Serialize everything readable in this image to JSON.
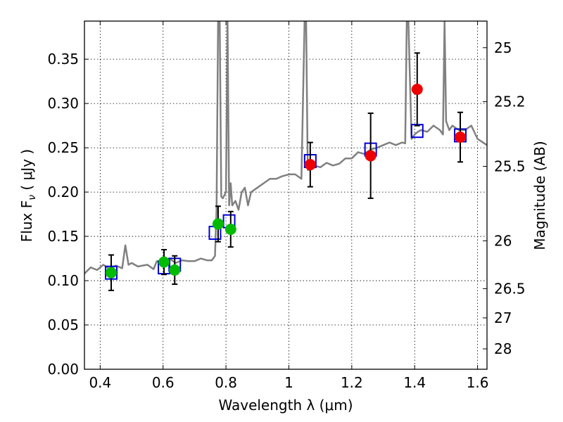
{
  "chart_data": {
    "type": "scatter",
    "xlabel": "Wavelength  λ (μm)",
    "ylabel": "Flux  F",
    "ylabel_sub": "ν",
    "ylabel_unit": " ( μJy )",
    "y2label": "Magnitude (AB)",
    "xlim": [
      0.35,
      1.63
    ],
    "ylim": [
      0.0,
      0.393
    ],
    "grid": true,
    "x_ticks": [
      0.4,
      0.6,
      0.8,
      1.0,
      1.2,
      1.4,
      1.6
    ],
    "x_tick_labels": [
      "0.4",
      "0.6",
      "0.8",
      "1",
      "1.2",
      "1.4",
      "1.6"
    ],
    "y_ticks": [
      0.0,
      0.05,
      0.1,
      0.15,
      0.2,
      0.25,
      0.3,
      0.35
    ],
    "y_tick_labels": [
      "0.00",
      "0.05",
      "0.10",
      "0.15",
      "0.20",
      "0.25",
      "0.30",
      "0.35"
    ],
    "y2_ticks": [
      {
        "label": "25",
        "flux": 0.363
      },
      {
        "label": "25.2",
        "flux": 0.302
      },
      {
        "label": "25.5",
        "flux": 0.229
      },
      {
        "label": "26",
        "flux": 0.145
      },
      {
        "label": "26.5",
        "flux": 0.091
      },
      {
        "label": "27",
        "flux": 0.058
      },
      {
        "label": "28",
        "flux": 0.023
      }
    ],
    "colors": {
      "spectrum": "#808080",
      "model_boxes": "#0000dd",
      "green_points": "#00bb00",
      "red_points": "#ee0000",
      "error_bars": "#000000"
    },
    "spectrum": {
      "x": [
        0.35,
        0.37,
        0.39,
        0.41,
        0.43,
        0.45,
        0.47,
        0.48,
        0.49,
        0.5,
        0.52,
        0.55,
        0.57,
        0.58,
        0.6,
        0.62,
        0.64,
        0.66,
        0.68,
        0.7,
        0.72,
        0.74,
        0.755,
        0.765,
        0.77,
        0.775,
        0.78,
        0.785,
        0.79,
        0.8,
        0.805,
        0.81,
        0.815,
        0.82,
        0.83,
        0.84,
        0.85,
        0.86,
        0.87,
        0.88,
        0.9,
        0.92,
        0.94,
        0.96,
        0.98,
        1.0,
        1.02,
        1.04,
        1.05,
        1.055,
        1.06,
        1.065,
        1.08,
        1.1,
        1.12,
        1.14,
        1.16,
        1.18,
        1.2,
        1.22,
        1.24,
        1.26,
        1.28,
        1.3,
        1.32,
        1.34,
        1.36,
        1.37,
        1.375,
        1.38,
        1.39,
        1.4,
        1.41,
        1.42,
        1.44,
        1.46,
        1.48,
        1.49,
        1.495,
        1.5,
        1.51,
        1.52,
        1.54,
        1.56,
        1.58,
        1.6,
        1.63
      ],
      "y": [
        0.108,
        0.115,
        0.112,
        0.118,
        0.113,
        0.117,
        0.114,
        0.14,
        0.118,
        0.12,
        0.116,
        0.118,
        0.113,
        0.122,
        0.12,
        0.125,
        0.12,
        0.123,
        0.122,
        0.122,
        0.125,
        0.123,
        0.123,
        0.128,
        0.18,
        0.393,
        0.393,
        0.195,
        0.193,
        0.2,
        0.393,
        0.185,
        0.21,
        0.185,
        0.19,
        0.18,
        0.2,
        0.205,
        0.185,
        0.2,
        0.205,
        0.21,
        0.215,
        0.215,
        0.218,
        0.22,
        0.22,
        0.215,
        0.393,
        0.393,
        0.225,
        0.225,
        0.23,
        0.228,
        0.233,
        0.23,
        0.232,
        0.238,
        0.238,
        0.245,
        0.243,
        0.248,
        0.25,
        0.253,
        0.256,
        0.253,
        0.256,
        0.255,
        0.393,
        0.393,
        0.26,
        0.265,
        0.268,
        0.27,
        0.268,
        0.275,
        0.27,
        0.265,
        0.393,
        0.28,
        0.27,
        0.275,
        0.27,
        0.27,
        0.275,
        0.26,
        0.253
      ]
    },
    "model_boxes": [
      {
        "x": 0.435,
        "y": 0.109
      },
      {
        "x": 0.603,
        "y": 0.115
      },
      {
        "x": 0.637,
        "y": 0.118
      },
      {
        "x": 0.765,
        "y": 0.154
      },
      {
        "x": 0.81,
        "y": 0.167
      },
      {
        "x": 1.068,
        "y": 0.235
      },
      {
        "x": 1.26,
        "y": 0.248
      },
      {
        "x": 1.408,
        "y": 0.269
      },
      {
        "x": 1.545,
        "y": 0.264
      }
    ],
    "measurements": [
      {
        "x": 0.435,
        "y": 0.109,
        "err": 0.02,
        "color": "green"
      },
      {
        "x": 0.603,
        "y": 0.121,
        "err": 0.014,
        "color": "green"
      },
      {
        "x": 0.637,
        "y": 0.112,
        "err": 0.016,
        "color": "green"
      },
      {
        "x": 0.775,
        "y": 0.164,
        "err": 0.02,
        "color": "green"
      },
      {
        "x": 0.815,
        "y": 0.158,
        "err": 0.02,
        "color": "green"
      },
      {
        "x": 1.068,
        "y": 0.231,
        "err": 0.025,
        "color": "red"
      },
      {
        "x": 1.26,
        "y": 0.241,
        "err": 0.048,
        "color": "red"
      },
      {
        "x": 1.408,
        "y": 0.316,
        "err": 0.041,
        "color": "red"
      },
      {
        "x": 1.545,
        "y": 0.262,
        "err": 0.028,
        "color": "red"
      }
    ]
  }
}
